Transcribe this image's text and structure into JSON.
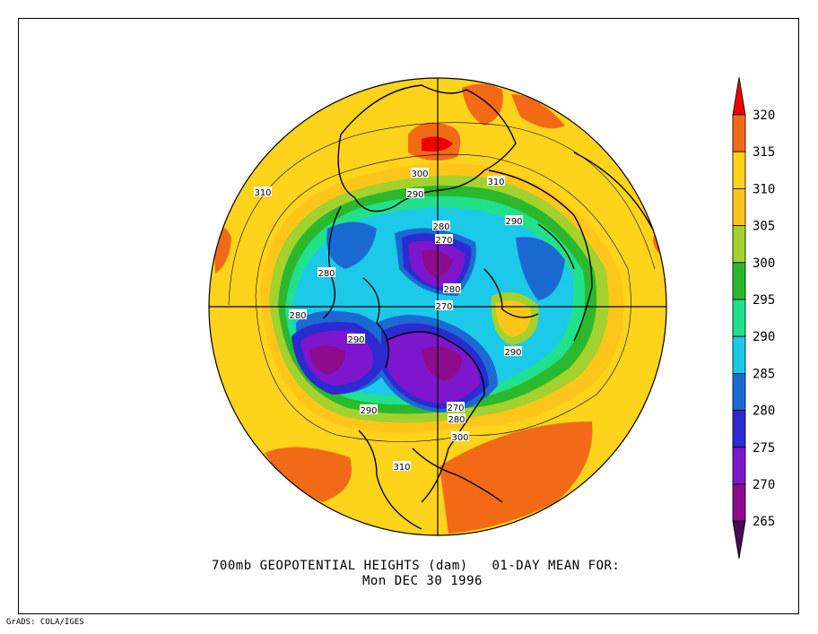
{
  "title_line1": "700mb GEOPOTENTIAL HEIGHTS (dam)   01-DAY MEAN FOR:",
  "title_line2": "Mon DEC 30 1996",
  "footer": "GrADS: COLA/IGES",
  "colorbar": {
    "labels": [
      "320",
      "315",
      "310",
      "305",
      "300",
      "295",
      "290",
      "285",
      "280",
      "275",
      "270",
      "265"
    ],
    "colors": [
      "#ee0000",
      "#f26a16",
      "#fed31c",
      "#fec61b",
      "#a3d22e",
      "#2bb82c",
      "#20e08c",
      "#1cc9e9",
      "#1a6ad2",
      "#2b2bcf",
      "#7d16cc",
      "#8c0c8c",
      "#4a0a55"
    ]
  },
  "contour_labels": [
    {
      "text": "300"
    },
    {
      "text": "310"
    },
    {
      "text": "310"
    },
    {
      "text": "290"
    },
    {
      "text": "290"
    },
    {
      "text": "280"
    },
    {
      "text": "270"
    },
    {
      "text": "280"
    },
    {
      "text": "280"
    },
    {
      "text": "270"
    },
    {
      "text": "280"
    },
    {
      "text": "290"
    },
    {
      "text": "290"
    },
    {
      "text": "290"
    },
    {
      "text": "270"
    },
    {
      "text": "280"
    },
    {
      "text": "300"
    },
    {
      "text": "310"
    }
  ]
}
